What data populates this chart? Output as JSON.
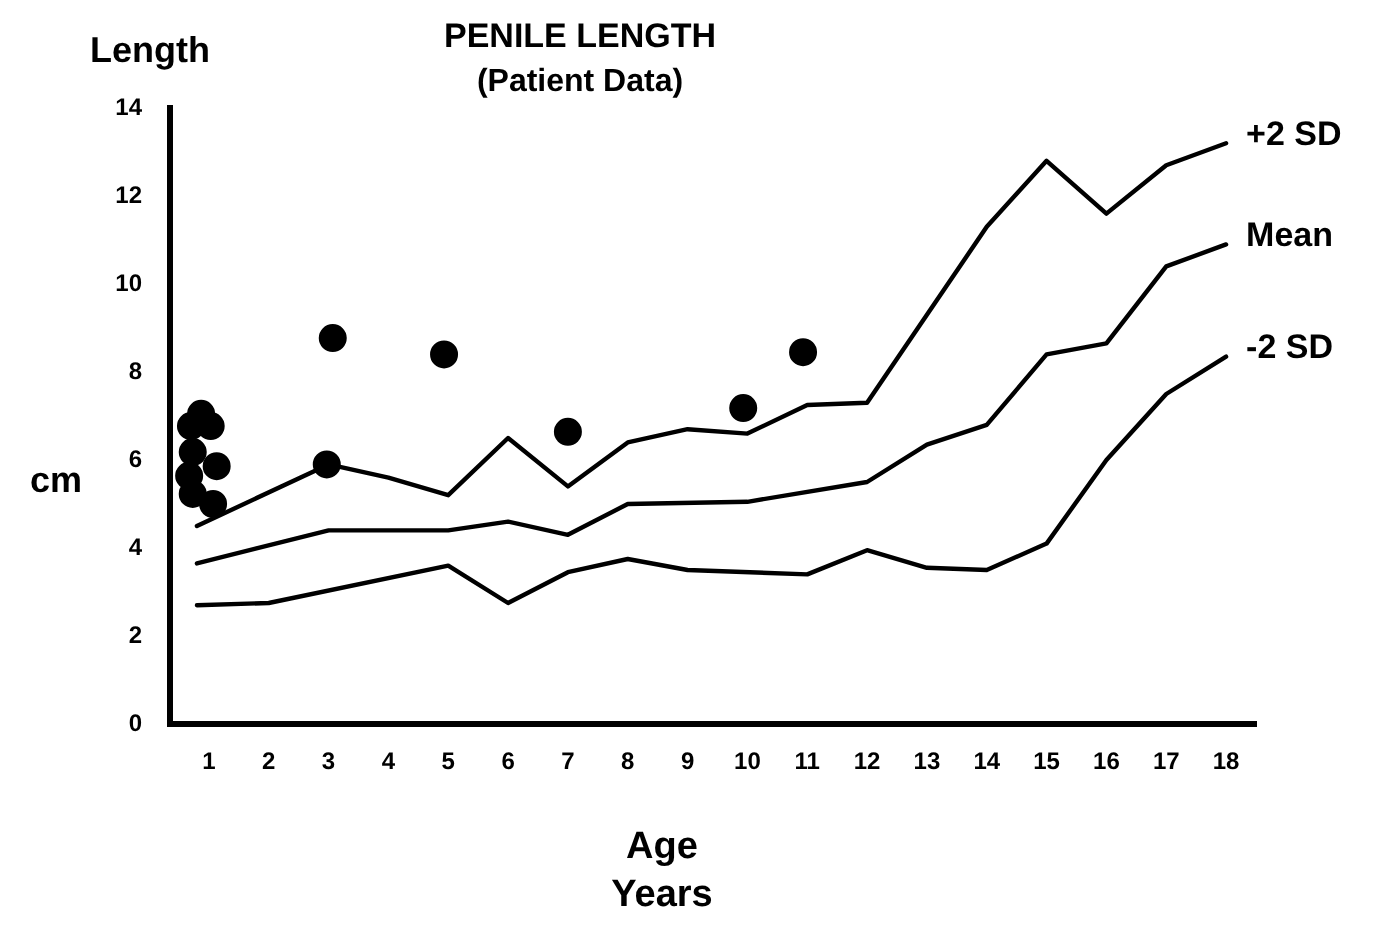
{
  "chart_data": {
    "type": "line",
    "title": "PENILE LENGTH",
    "subtitle": "(Patient Data)",
    "xlabel": "Age\nYears",
    "ylabel": "cm",
    "annotations": [
      "Length"
    ],
    "xlim": [
      0.35,
      18.5
    ],
    "xticks": [
      1,
      2,
      3,
      4,
      5,
      6,
      7,
      8,
      9,
      10,
      11,
      12,
      13,
      14,
      15,
      16,
      17,
      18
    ],
    "ylim": [
      0,
      14
    ],
    "yticks": [
      0,
      2,
      4,
      6,
      8,
      10,
      12,
      14
    ],
    "grid": false,
    "legend": false,
    "line_style": "solid",
    "series": [
      {
        "name": "+2 SD",
        "color": "#000000",
        "marker": "none",
        "x": [
          0.8,
          3,
          4,
          5,
          6,
          7,
          8,
          9,
          10,
          11,
          12,
          14,
          15,
          16,
          17,
          18
        ],
        "values": [
          4.5,
          5.9,
          5.6,
          5.2,
          6.5,
          5.4,
          6.4,
          6.7,
          6.6,
          7.25,
          7.3,
          11.3,
          12.8,
          11.6,
          12.7,
          13.2
        ]
      },
      {
        "name": "Mean",
        "color": "#000000",
        "marker": "none",
        "x": [
          0.8,
          3,
          5,
          6,
          7,
          8,
          10,
          12,
          13,
          14,
          15,
          16,
          17,
          18
        ],
        "values": [
          3.65,
          4.4,
          4.4,
          4.6,
          4.3,
          5.0,
          5.05,
          5.5,
          6.35,
          6.8,
          8.4,
          8.65,
          10.4,
          10.9
        ]
      },
      {
        "name": "-2 SD",
        "color": "#000000",
        "marker": "none",
        "x": [
          0.8,
          2,
          5,
          6,
          7,
          8,
          9,
          11,
          12,
          13,
          14,
          15,
          16,
          17,
          18
        ],
        "values": [
          2.7,
          2.75,
          3.6,
          2.75,
          3.45,
          3.75,
          3.5,
          3.4,
          3.95,
          3.55,
          3.5,
          4.1,
          6.0,
          7.5,
          8.35
        ]
      },
      {
        "type": "scatter",
        "color": "#000000",
        "marker": "circle",
        "x": [
          0.87,
          0.7,
          1.03,
          0.73,
          1.13,
          0.67,
          0.73,
          1.07,
          3.07,
          2.97,
          4.93,
          7.0,
          9.93,
          10.93
        ],
        "values": [
          7.05,
          6.77,
          6.77,
          6.18,
          5.86,
          5.64,
          5.23,
          5.0,
          8.77,
          5.9,
          8.4,
          6.64,
          7.18,
          8.45
        ]
      }
    ]
  }
}
